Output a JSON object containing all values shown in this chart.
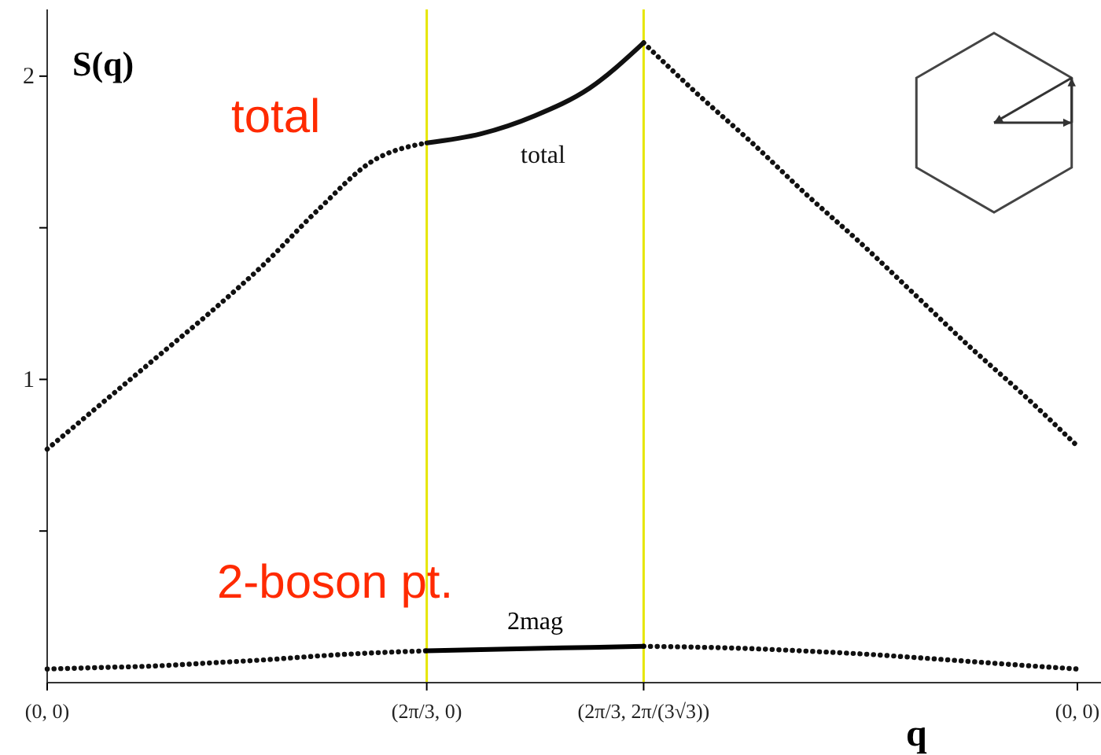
{
  "chart_data": {
    "type": "line",
    "ylabel": "S(q)",
    "xlabel": "q",
    "categories": [
      "(0, 0)",
      null,
      null,
      null,
      null,
      null,
      null,
      "(2π/3, 0)",
      null,
      null,
      null,
      "(2π/3, 2π/(3√3))",
      null,
      null,
      null,
      null,
      null,
      null,
      null,
      "(0, 0)"
    ],
    "ylim": [
      0,
      2.22
    ],
    "yticks": [
      {
        "value": 0.5,
        "label": null
      },
      1,
      {
        "value": 1.5,
        "label": null
      },
      2
    ],
    "series": [
      {
        "color": "#111111",
        "line_style": "dotted",
        "values": [
          0.77,
          0.92,
          1.07,
          1.22,
          1.38,
          1.56,
          1.72,
          1.78,
          null,
          null,
          null,
          2.11,
          1.94,
          1.78,
          1.61,
          1.45,
          1.28,
          1.11,
          0.95,
          0.78
        ]
      },
      {
        "name": "total",
        "color": "#111111",
        "line_style": "solid",
        "values": [
          null,
          null,
          null,
          null,
          null,
          null,
          null,
          1.78,
          1.81,
          1.87,
          1.96,
          2.11,
          null,
          null,
          null,
          null,
          null,
          null,
          null,
          null
        ]
      },
      {
        "color": "#111111",
        "line_style": "dotted",
        "values": [
          0.045,
          0.05,
          0.055,
          0.065,
          0.075,
          0.088,
          0.098,
          0.105,
          null,
          null,
          null,
          0.12,
          0.117,
          0.112,
          0.104,
          0.095,
          0.083,
          0.07,
          0.057,
          0.045
        ]
      },
      {
        "name": "2mag",
        "color": "#000000",
        "line_style": "solid",
        "values": [
          null,
          null,
          null,
          null,
          null,
          null,
          null,
          0.105,
          0.109,
          0.113,
          0.116,
          0.12,
          null,
          null,
          null,
          null,
          null,
          null,
          null,
          null
        ]
      }
    ],
    "ref_lines": [
      {
        "axis": "x",
        "value": "(2π/3, 0)",
        "color": "#e6e600"
      },
      {
        "axis": "x",
        "value": "(2π/3, 2π/(3√3))",
        "color": "#e6e600"
      }
    ],
    "annotations": [
      "total",
      "2-boson pt."
    ]
  }
}
